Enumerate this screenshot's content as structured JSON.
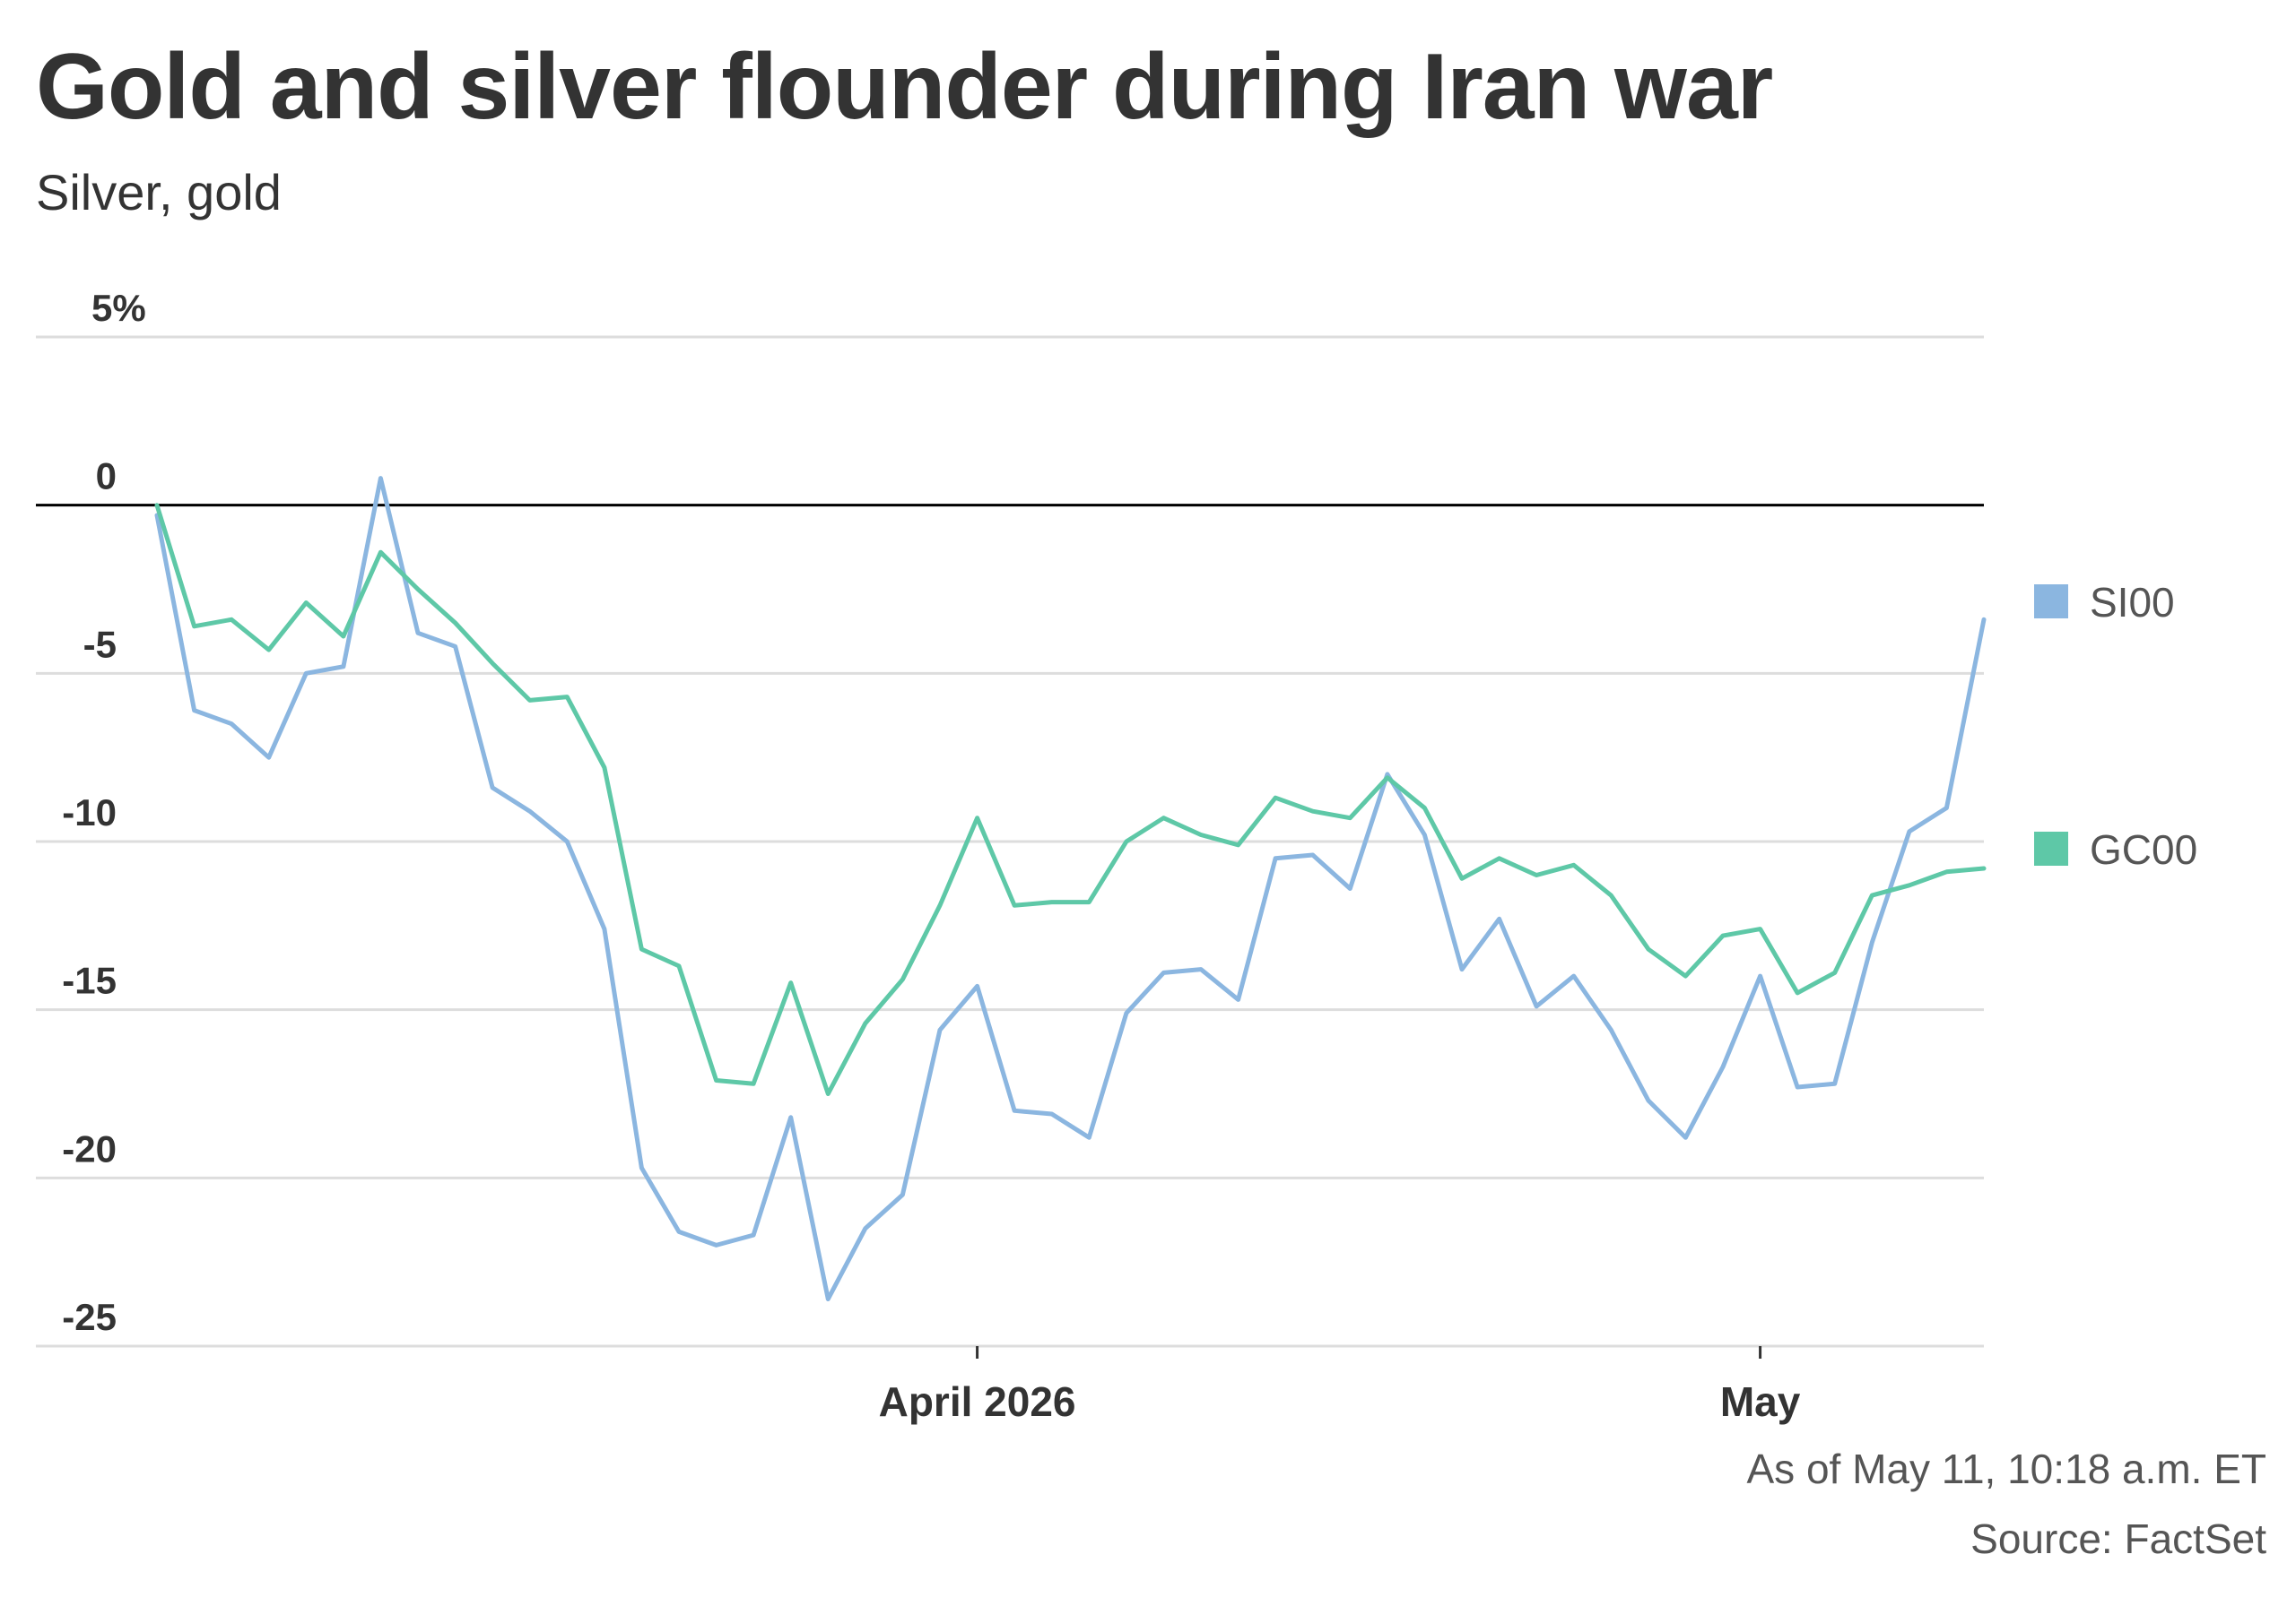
{
  "header": {
    "title": "Gold and silver flounder during Iran war",
    "subtitle": "Silver, gold"
  },
  "footer": {
    "as_of": "As of May 11, 10:18 a.m. ET",
    "source": "Source: FactSet"
  },
  "colors": {
    "SI00": "#8bb6e0",
    "GC00": "#5ec8a7",
    "zero_line": "#000000",
    "grid": "#dddddd"
  },
  "chart_data": {
    "type": "line",
    "title": "Gold and silver flounder during Iran war",
    "subtitle": "Silver, gold",
    "xlabel": "",
    "ylabel": "",
    "x_ticks": [
      {
        "label": "April 2026",
        "index": 22
      },
      {
        "label": "May",
        "index": 43
      }
    ],
    "y_ticks": [
      {
        "label": "5%",
        "value": 5
      },
      {
        "label": "0",
        "value": 0
      },
      {
        "label": "-5",
        "value": -5
      },
      {
        "label": "-10",
        "value": -10
      },
      {
        "label": "-15",
        "value": -15
      },
      {
        "label": "-20",
        "value": -20
      },
      {
        "label": "-25",
        "value": -25
      }
    ],
    "ylim": [
      -25,
      5
    ],
    "grid": "horizontal",
    "legend": "right, at line ends",
    "series": [
      {
        "name": "SI00",
        "values": [
          -0.3,
          -6.1,
          -6.5,
          -7.5,
          -5.0,
          -4.8,
          0.8,
          -3.8,
          -4.2,
          -8.4,
          -9.1,
          -10.0,
          -12.6,
          -19.7,
          -21.6,
          -22.0,
          -21.7,
          -18.2,
          -23.6,
          -21.5,
          -20.5,
          -15.6,
          -14.3,
          -18.0,
          -18.1,
          -18.8,
          -15.1,
          -13.9,
          -13.8,
          -14.7,
          -10.5,
          -10.4,
          -11.4,
          -8.0,
          -9.8,
          -13.8,
          -12.3,
          -14.9,
          -14.0,
          -15.6,
          -17.7,
          -18.8,
          -16.7,
          -14.0,
          -17.3,
          -17.2,
          -13.0,
          -9.7,
          -9.0,
          -3.4
        ]
      },
      {
        "name": "GC00",
        "values": [
          0.0,
          -3.6,
          -3.4,
          -4.3,
          -2.9,
          -3.9,
          -1.4,
          -2.5,
          -3.5,
          -4.7,
          -5.8,
          -5.7,
          -7.8,
          -13.2,
          -13.7,
          -17.1,
          -17.2,
          -14.2,
          -17.5,
          -15.4,
          -14.1,
          -11.9,
          -9.3,
          -11.9,
          -11.8,
          -11.8,
          -10.0,
          -9.3,
          -9.8,
          -10.1,
          -8.7,
          -9.1,
          -9.3,
          -8.1,
          -9.0,
          -11.1,
          -10.5,
          -11.0,
          -10.7,
          -11.6,
          -13.2,
          -14.0,
          -12.8,
          -12.6,
          -14.5,
          -13.9,
          -11.6,
          -11.3,
          -10.9,
          -10.8
        ]
      }
    ]
  }
}
